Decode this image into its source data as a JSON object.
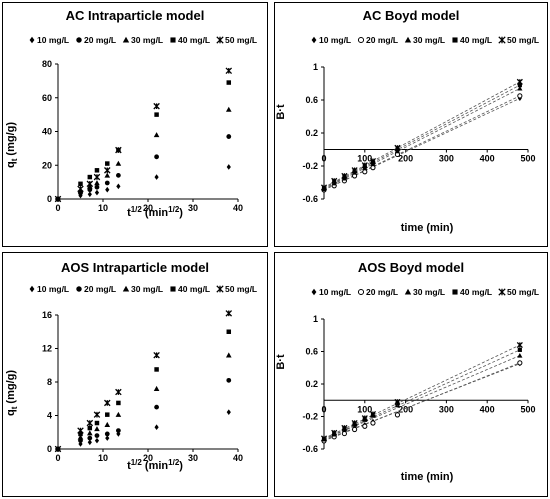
{
  "chart_data": [
    {
      "type": "scatter",
      "title": "AC  Intraparticle model",
      "xlabel": "t",
      "xlabel_sup1": "1/2",
      "xlabel_mid": " (min",
      "xlabel_sup2": "1/2",
      "xlabel_end": ")",
      "ylabel": "q",
      "ylabel_sub": "t",
      "ylabel_end": " (mg/g)",
      "xlim": [
        0,
        40
      ],
      "ylim": [
        0,
        80
      ],
      "xticks": [
        "0",
        "10",
        "20",
        "30",
        "40"
      ],
      "yticks": [
        "0",
        "20",
        "40",
        "60",
        "80"
      ],
      "x": [
        0,
        5,
        7.07,
        8.66,
        10.95,
        13.42,
        21.91,
        37.95
      ],
      "series": [
        {
          "name": "10 mg/L",
          "marker": "diamond",
          "values": [
            0,
            2,
            2.8,
            3.8,
            5.5,
            7.5,
            13,
            19
          ]
        },
        {
          "name": "20 mg/L",
          "marker": "circle",
          "values": [
            0,
            3.5,
            5.5,
            7,
            9.5,
            14,
            25,
            37
          ]
        },
        {
          "name": "30 mg/L",
          "marker": "triangle",
          "values": [
            0,
            5,
            7.5,
            9.5,
            14,
            21,
            38,
            53
          ]
        },
        {
          "name": "40 mg/L",
          "marker": "square",
          "values": [
            0,
            9,
            13,
            17,
            21,
            29,
            50,
            69
          ]
        },
        {
          "name": "50 mg/L",
          "marker": "star",
          "values": [
            0,
            6,
            9,
            13,
            17,
            29,
            55,
            76
          ]
        }
      ]
    },
    {
      "type": "line",
      "title": "AC Boyd model",
      "xlabel": "time (min)",
      "ylabel": "B·t",
      "xlim": [
        0,
        500
      ],
      "ylim": [
        -0.6,
        1
      ],
      "xticks": [
        "0",
        "100",
        "200",
        "300",
        "400",
        "500"
      ],
      "yticks": [
        "-0.6",
        "-0.2",
        "0.2",
        "0.6",
        "1"
      ],
      "x": [
        0,
        25,
        50,
        75,
        100,
        120,
        180,
        480
      ],
      "series": [
        {
          "name": "10 mg/L",
          "marker": "diamond",
          "values": [
            -0.49,
            -0.43,
            -0.38,
            -0.31,
            -0.25,
            -0.2,
            -0.05,
            0.62
          ]
        },
        {
          "name": "20 mg/L",
          "marker": "circle",
          "values": [
            -0.49,
            -0.44,
            -0.38,
            -0.32,
            -0.27,
            -0.22,
            -0.06,
            0.65
          ]
        },
        {
          "name": "30 mg/L",
          "marker": "triangle",
          "values": [
            -0.48,
            -0.41,
            -0.35,
            -0.28,
            -0.22,
            -0.17,
            -0.02,
            0.74
          ]
        },
        {
          "name": "40 mg/L",
          "marker": "square",
          "values": [
            -0.47,
            -0.39,
            -0.33,
            -0.26,
            -0.2,
            -0.15,
            0.0,
            0.78
          ]
        },
        {
          "name": "50 mg/L",
          "marker": "star",
          "values": [
            -0.46,
            -0.38,
            -0.32,
            -0.25,
            -0.19,
            -0.14,
            0.02,
            0.82
          ]
        }
      ]
    },
    {
      "type": "scatter",
      "title": "AOS  Intraparticle model",
      "xlabel": "t",
      "xlabel_sup1": "1/2",
      "xlabel_mid": " (min",
      "xlabel_sup2": "1/2",
      "xlabel_end": ")",
      "ylabel": "q",
      "ylabel_sub": "t",
      "ylabel_end": " (mg/g)",
      "xlim": [
        0,
        40
      ],
      "ylim": [
        0,
        16
      ],
      "xticks": [
        "0",
        "10",
        "20",
        "30",
        "40"
      ],
      "yticks": [
        "0",
        "4",
        "8",
        "12",
        "16"
      ],
      "x": [
        0,
        5,
        7.07,
        8.66,
        10.95,
        13.42,
        21.91,
        37.95
      ],
      "series": [
        {
          "name": "10 mg/L",
          "marker": "diamond",
          "values": [
            0,
            0.6,
            0.8,
            1.0,
            1.3,
            1.8,
            2.6,
            4.4
          ]
        },
        {
          "name": "20 mg/L",
          "marker": "circle",
          "values": [
            0,
            1.0,
            1.3,
            1.6,
            1.8,
            2.2,
            5.0,
            8.2
          ]
        },
        {
          "name": "30 mg/L",
          "marker": "triangle",
          "values": [
            0,
            1.4,
            1.9,
            2.4,
            2.9,
            4.1,
            7.2,
            11.2
          ]
        },
        {
          "name": "40 mg/L",
          "marker": "square",
          "values": [
            0,
            1.8,
            2.5,
            3.1,
            4.1,
            5.5,
            9.5,
            14
          ]
        },
        {
          "name": "50 mg/L",
          "marker": "star",
          "values": [
            0,
            2.2,
            3.1,
            4.1,
            5.5,
            6.8,
            11.2,
            16.2
          ]
        }
      ]
    },
    {
      "type": "line",
      "title": "AOS  Boyd model",
      "xlabel": "time (min)",
      "ylabel": "B·t",
      "xlim": [
        0,
        500
      ],
      "ylim": [
        -0.6,
        1
      ],
      "xticks": [
        "0",
        "100",
        "200",
        "300",
        "400",
        "500"
      ],
      "yticks": [
        "-0.6",
        "-0.2",
        "0.2",
        "0.6",
        "1"
      ],
      "x": [
        0,
        25,
        50,
        75,
        100,
        120,
        180,
        480
      ],
      "series": [
        {
          "name": "10 mg/L",
          "marker": "diamond",
          "values": [
            -0.49,
            -0.44,
            -0.39,
            -0.34,
            -0.3,
            -0.26,
            -0.17,
            0.45
          ]
        },
        {
          "name": "20 mg/L",
          "marker": "circle",
          "values": [
            -0.5,
            -0.45,
            -0.41,
            -0.36,
            -0.32,
            -0.28,
            -0.18,
            0.46
          ]
        },
        {
          "name": "30 mg/L",
          "marker": "triangle",
          "values": [
            -0.48,
            -0.42,
            -0.36,
            -0.3,
            -0.24,
            -0.19,
            -0.06,
            0.55
          ]
        },
        {
          "name": "40 mg/L",
          "marker": "square",
          "values": [
            -0.48,
            -0.41,
            -0.35,
            -0.29,
            -0.23,
            -0.18,
            -0.04,
            0.62
          ]
        },
        {
          "name": "50 mg/L",
          "marker": "star",
          "values": [
            -0.47,
            -0.4,
            -0.34,
            -0.28,
            -0.22,
            -0.17,
            -0.02,
            0.68
          ]
        }
      ]
    }
  ]
}
